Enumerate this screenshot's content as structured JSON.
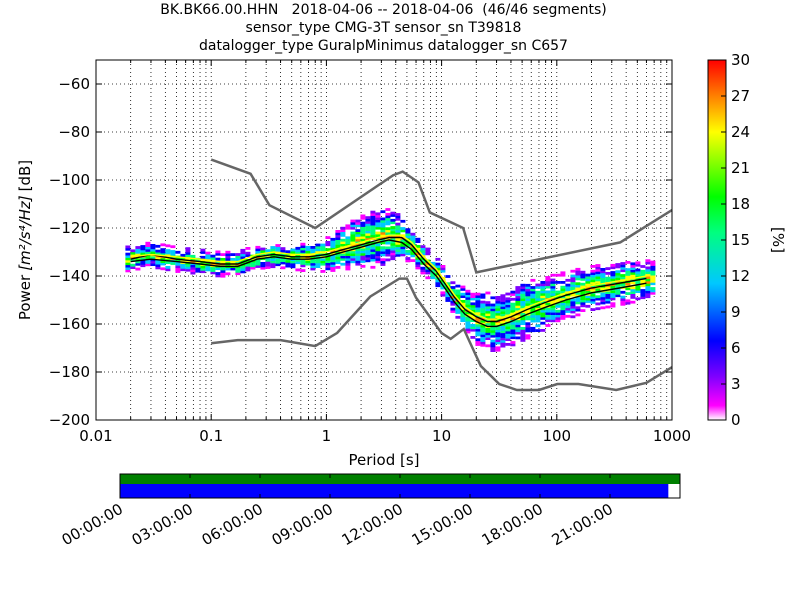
{
  "chart_data": [
    {
      "type": "heatmap",
      "subtype": "probabilistic-power-spectral-density",
      "title": [
        "BK.BK66.00.HHN   2018-04-06 -- 2018-04-06  (46/46 segments)",
        "sensor_type CMG-3T sensor_sn T39818",
        "datalogger_type GuralpMinimus datalogger_sn C657"
      ],
      "xlabel": "Period [s]",
      "ylabel_prefix": "Power",
      "ylabel_math": "[m²/s⁴/Hz]",
      "ylabel_suffix": "[dB]",
      "xscale": "log",
      "xlim": [
        0.01,
        1000
      ],
      "ylim": [
        -200,
        -50
      ],
      "xticks": [
        0.01,
        0.1,
        1,
        10,
        100,
        1000
      ],
      "xtick_labels": [
        "0.01",
        "0.1",
        "1",
        "10",
        "100",
        "1000"
      ],
      "yticks": [
        -200,
        -180,
        -160,
        -140,
        -120,
        -100,
        -80,
        -60
      ],
      "ytick_labels": [
        "−200",
        "−180",
        "−160",
        "−140",
        "−120",
        "−100",
        "−80",
        "−60"
      ],
      "grid": true,
      "colorbar": {
        "label": "[%]",
        "range": [
          0,
          30
        ],
        "ticks": [
          "0",
          "3",
          "6",
          "9",
          "12",
          "15",
          "18",
          "21",
          "24",
          "27",
          "30"
        ],
        "colormap": "pqlx",
        "colors": [
          "#ffffff",
          "#ff00ff",
          "#8000ff",
          "#0000ff",
          "#00c8ff",
          "#00ff80",
          "#00ff00",
          "#ffff00",
          "#ff8000",
          "#ff0000"
        ]
      },
      "series": [
        {
          "name": "NHNM",
          "color": "#666666",
          "x": [
            0.1,
            0.22,
            0.32,
            0.8,
            3.8,
            4.6,
            6.3,
            7.9,
            15.4,
            20,
            354.8,
            1000
          ],
          "y": [
            -91.5,
            -97.4,
            -110.5,
            -120,
            -98,
            -96.5,
            -101,
            -113.5,
            -120,
            -138.5,
            -126,
            -112.5
          ]
        },
        {
          "name": "NLNM",
          "color": "#666666",
          "x": [
            0.1,
            0.17,
            0.4,
            0.8,
            1.24,
            2.4,
            4.3,
            5,
            6,
            10,
            12,
            15.6,
            21.9,
            31.6,
            45,
            70,
            101,
            154,
            328,
            600,
            1000
          ],
          "y": [
            -168,
            -166.7,
            -166.7,
            -169.2,
            -163.7,
            -148.6,
            -141.1,
            -141.1,
            -149,
            -163.8,
            -166.2,
            -162.1,
            -177.5,
            -185,
            -187.5,
            -187.5,
            -185,
            -185,
            -187.5,
            -184.5,
            -178
          ]
        },
        {
          "name": "mode",
          "color": "#000000",
          "x": [
            0.02,
            0.03,
            0.05,
            0.08,
            0.12,
            0.17,
            0.25,
            0.35,
            0.5,
            0.7,
            1.0,
            1.4,
            2.0,
            2.8,
            3.5,
            4.5,
            5.5,
            7,
            9,
            11,
            13,
            16,
            20,
            25,
            30,
            40,
            55,
            80,
            120,
            200,
            350,
            600
          ],
          "y": [
            -133,
            -131,
            -133,
            -134,
            -135,
            -135,
            -132,
            -131,
            -132,
            -132,
            -131,
            -129,
            -127,
            -125,
            -124,
            -124,
            -127,
            -133,
            -138,
            -144,
            -149,
            -154,
            -157,
            -159,
            -159,
            -157,
            -154,
            -151,
            -148,
            -145,
            -143,
            -141
          ]
        },
        {
          "name": "percentile",
          "color": "#000000",
          "x": [
            0.02,
            0.03,
            0.05,
            0.08,
            0.12,
            0.17,
            0.25,
            0.35,
            0.5,
            0.7,
            1.0,
            1.4,
            2.0,
            2.8,
            3.5,
            4.5,
            5.5,
            7,
            9,
            11,
            13,
            16,
            20,
            25,
            30,
            40,
            55,
            80,
            120,
            200,
            350,
            600
          ],
          "y": [
            -134,
            -133,
            -134,
            -135,
            -136,
            -136,
            -133,
            -132,
            -133,
            -133,
            -132,
            -130,
            -128,
            -126,
            -125,
            -126,
            -129,
            -135,
            -140,
            -146,
            -151,
            -156,
            -159,
            -161,
            -161,
            -159,
            -156,
            -153,
            -150,
            -147,
            -145,
            -143
          ]
        },
        {
          "name": "mean",
          "color": "#ffff00",
          "x": [
            0.02,
            0.03,
            0.05,
            0.08,
            0.12,
            0.17,
            0.25,
            0.35,
            0.5,
            0.7,
            1.0,
            1.4,
            2.0,
            2.8,
            3.5,
            4.5,
            5.5,
            7,
            9,
            11,
            13,
            16,
            20,
            25,
            30,
            40,
            55,
            80,
            120,
            200,
            350,
            600
          ],
          "y": [
            -132,
            -131,
            -132,
            -133,
            -134,
            -134,
            -131,
            -130,
            -131,
            -131,
            -130,
            -128,
            -126,
            -124,
            -123,
            -123,
            -126,
            -132,
            -137,
            -143,
            -148,
            -153,
            -156,
            -158,
            -158,
            -156,
            -153,
            -150,
            -147,
            -144,
            -142,
            -140
          ]
        }
      ],
      "density_center": {
        "x": [
          0.018,
          0.03,
          0.05,
          0.08,
          0.12,
          0.17,
          0.25,
          0.35,
          0.5,
          0.7,
          1.0,
          1.4,
          2.0,
          2.8,
          3.5,
          4.5,
          5.5,
          7,
          9,
          11,
          13,
          16,
          20,
          25,
          30,
          40,
          55,
          80,
          120,
          200,
          350,
          700
        ],
        "y": [
          -133,
          -131,
          -133,
          -134,
          -135,
          -135,
          -132,
          -131,
          -132,
          -132,
          -131,
          -128,
          -126,
          -124,
          -123,
          -124,
          -127,
          -133,
          -138,
          -144,
          -149,
          -154,
          -157,
          -159,
          -159,
          -157,
          -154,
          -151,
          -148,
          -145,
          -143,
          -141
        ],
        "spread_db": [
          5,
          5,
          5,
          5,
          5,
          5,
          5,
          5,
          5,
          6,
          7,
          9,
          11,
          12,
          11,
          9,
          7,
          6,
          6,
          6,
          7,
          9,
          11,
          12,
          12,
          12,
          12,
          11,
          10,
          9,
          9,
          8
        ]
      }
    },
    {
      "type": "timeline",
      "description_free": true,
      "xlim_hours": [
        0,
        24
      ],
      "xtick_labels": [
        "00:00:00",
        "03:00:00",
        "06:00:00",
        "09:00:00",
        "12:00:00",
        "15:00:00",
        "18:00:00",
        "21:00:00"
      ],
      "xtick_hours": [
        0,
        3,
        6,
        9,
        12,
        15,
        18,
        21
      ],
      "bars": [
        {
          "color": "#008000",
          "start_hours": 0,
          "end_hours": 24
        },
        {
          "color": "#0000ff",
          "start_hours": 0,
          "end_hours": 23.5
        }
      ]
    }
  ]
}
